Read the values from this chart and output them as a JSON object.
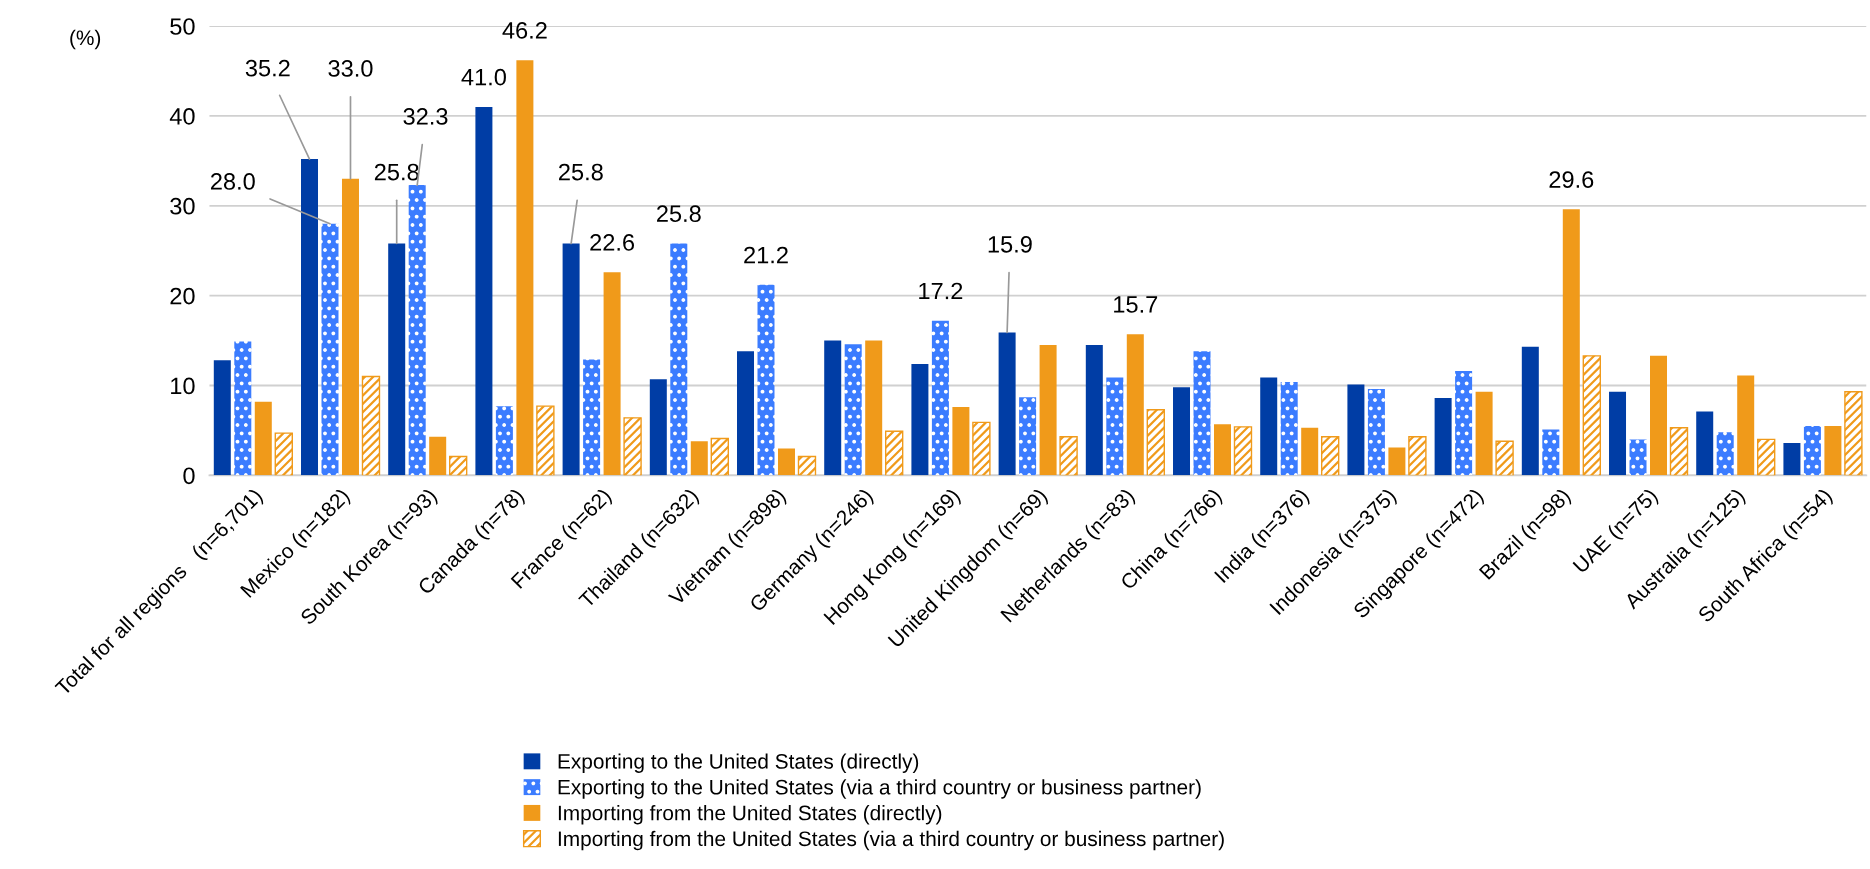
{
  "chart_data": {
    "type": "bar",
    "ylabel": "(%)",
    "categories": [
      "Total for all regions   (n=6,701)",
      "Mexico (n=182)",
      "South Korea (n=93)",
      "Canada (n=78)",
      "France (n=62)",
      "Thailand (n=632)",
      "Vietnam (n=898)",
      "Germany (n=246)",
      "Hong Kong (n=169)",
      "United Kingdom (n=69)",
      "Netherlands (n=83)",
      "China (n=766)",
      "India (n=376)",
      "Indonesia (n=375)",
      "Singapore (n=472)",
      "Brazil (n=98)",
      "UAE (n=75)",
      "Australia (n=125)",
      "South Africa (n=54)"
    ],
    "series": [
      {
        "name": "Exporting to the United States (directly)",
        "color": "#003da5",
        "values": [
          12.8,
          35.2,
          25.8,
          41.0,
          25.8,
          10.7,
          13.8,
          15.0,
          12.4,
          15.9,
          14.5,
          9.8,
          10.9,
          10.1,
          8.6,
          14.3,
          9.3,
          7.1,
          3.6
        ],
        "value_labels": [
          null,
          "35.2",
          "25.8",
          "41.0",
          "25.8",
          null,
          null,
          null,
          null,
          "15.9",
          null,
          null,
          null,
          null,
          null,
          null,
          null,
          null,
          null
        ]
      },
      {
        "name": "Exporting to the United States (via a third country or business partner)",
        "color": "#3b7cff",
        "values": [
          14.9,
          28.0,
          32.3,
          7.7,
          12.9,
          25.8,
          21.2,
          14.6,
          17.2,
          8.7,
          10.9,
          13.8,
          10.4,
          9.6,
          11.6,
          5.1,
          4.0,
          4.8,
          5.5
        ],
        "value_labels": [
          null,
          "28.0",
          "32.3",
          null,
          null,
          "25.8",
          "21.2",
          null,
          "17.2",
          null,
          null,
          null,
          null,
          null,
          null,
          null,
          null,
          null,
          null
        ]
      },
      {
        "name": "Importing from the United States (directly)",
        "color": "#f09a1a",
        "values": [
          8.2,
          33.0,
          4.3,
          46.2,
          22.6,
          3.8,
          3.0,
          15.0,
          7.6,
          14.5,
          15.7,
          5.7,
          5.3,
          3.1,
          9.3,
          29.6,
          13.3,
          11.1,
          5.5
        ],
        "value_labels": [
          null,
          "33.0",
          null,
          "46.2",
          "22.6",
          null,
          null,
          null,
          null,
          null,
          "15.7",
          null,
          null,
          null,
          null,
          "29.6",
          null,
          null,
          null
        ]
      },
      {
        "name": "Importing from the United States (via a third country or business partner)",
        "color": "#f09a1a",
        "values": [
          4.7,
          11.0,
          2.1,
          7.7,
          6.4,
          4.1,
          2.1,
          4.9,
          5.9,
          4.3,
          7.3,
          5.4,
          4.3,
          4.3,
          3.8,
          13.3,
          5.3,
          4.0,
          9.3
        ]
      }
    ],
    "ylim": [
      0,
      50
    ],
    "yticks": [
      0,
      10,
      20,
      30,
      40,
      50
    ],
    "grid": "y",
    "legend": "bottom"
  }
}
